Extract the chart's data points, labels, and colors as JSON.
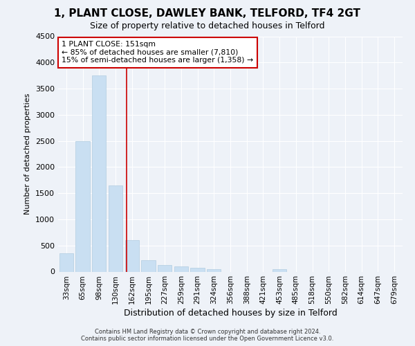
{
  "title": "1, PLANT CLOSE, DAWLEY BANK, TELFORD, TF4 2GT",
  "subtitle": "Size of property relative to detached houses in Telford",
  "xlabel": "Distribution of detached houses by size in Telford",
  "ylabel": "Number of detached properties",
  "categories": [
    "33sqm",
    "65sqm",
    "98sqm",
    "130sqm",
    "162sqm",
    "195sqm",
    "227sqm",
    "259sqm",
    "291sqm",
    "324sqm",
    "356sqm",
    "388sqm",
    "421sqm",
    "453sqm",
    "485sqm",
    "518sqm",
    "550sqm",
    "582sqm",
    "614sqm",
    "647sqm",
    "679sqm"
  ],
  "values": [
    350,
    2500,
    3750,
    1650,
    600,
    220,
    130,
    100,
    70,
    50,
    0,
    0,
    0,
    50,
    0,
    0,
    0,
    0,
    0,
    0,
    0
  ],
  "bar_color": "#c9dff2",
  "bar_edgecolor": "#b0cce0",
  "annotation_text_line1": "1 PLANT CLOSE: 151sqm",
  "annotation_text_line2": "← 85% of detached houses are smaller (7,810)",
  "annotation_text_line3": "15% of semi-detached houses are larger (1,358) →",
  "vline_color": "#cc0000",
  "annotation_box_edgecolor": "#cc0000",
  "background_color": "#eef2f8",
  "grid_color": "#ffffff",
  "footer_line1": "Contains HM Land Registry data © Crown copyright and database right 2024.",
  "footer_line2": "Contains public sector information licensed under the Open Government Licence v3.0.",
  "ylim": [
    0,
    4500
  ],
  "yticks": [
    0,
    500,
    1000,
    1500,
    2000,
    2500,
    3000,
    3500,
    4000,
    4500
  ]
}
